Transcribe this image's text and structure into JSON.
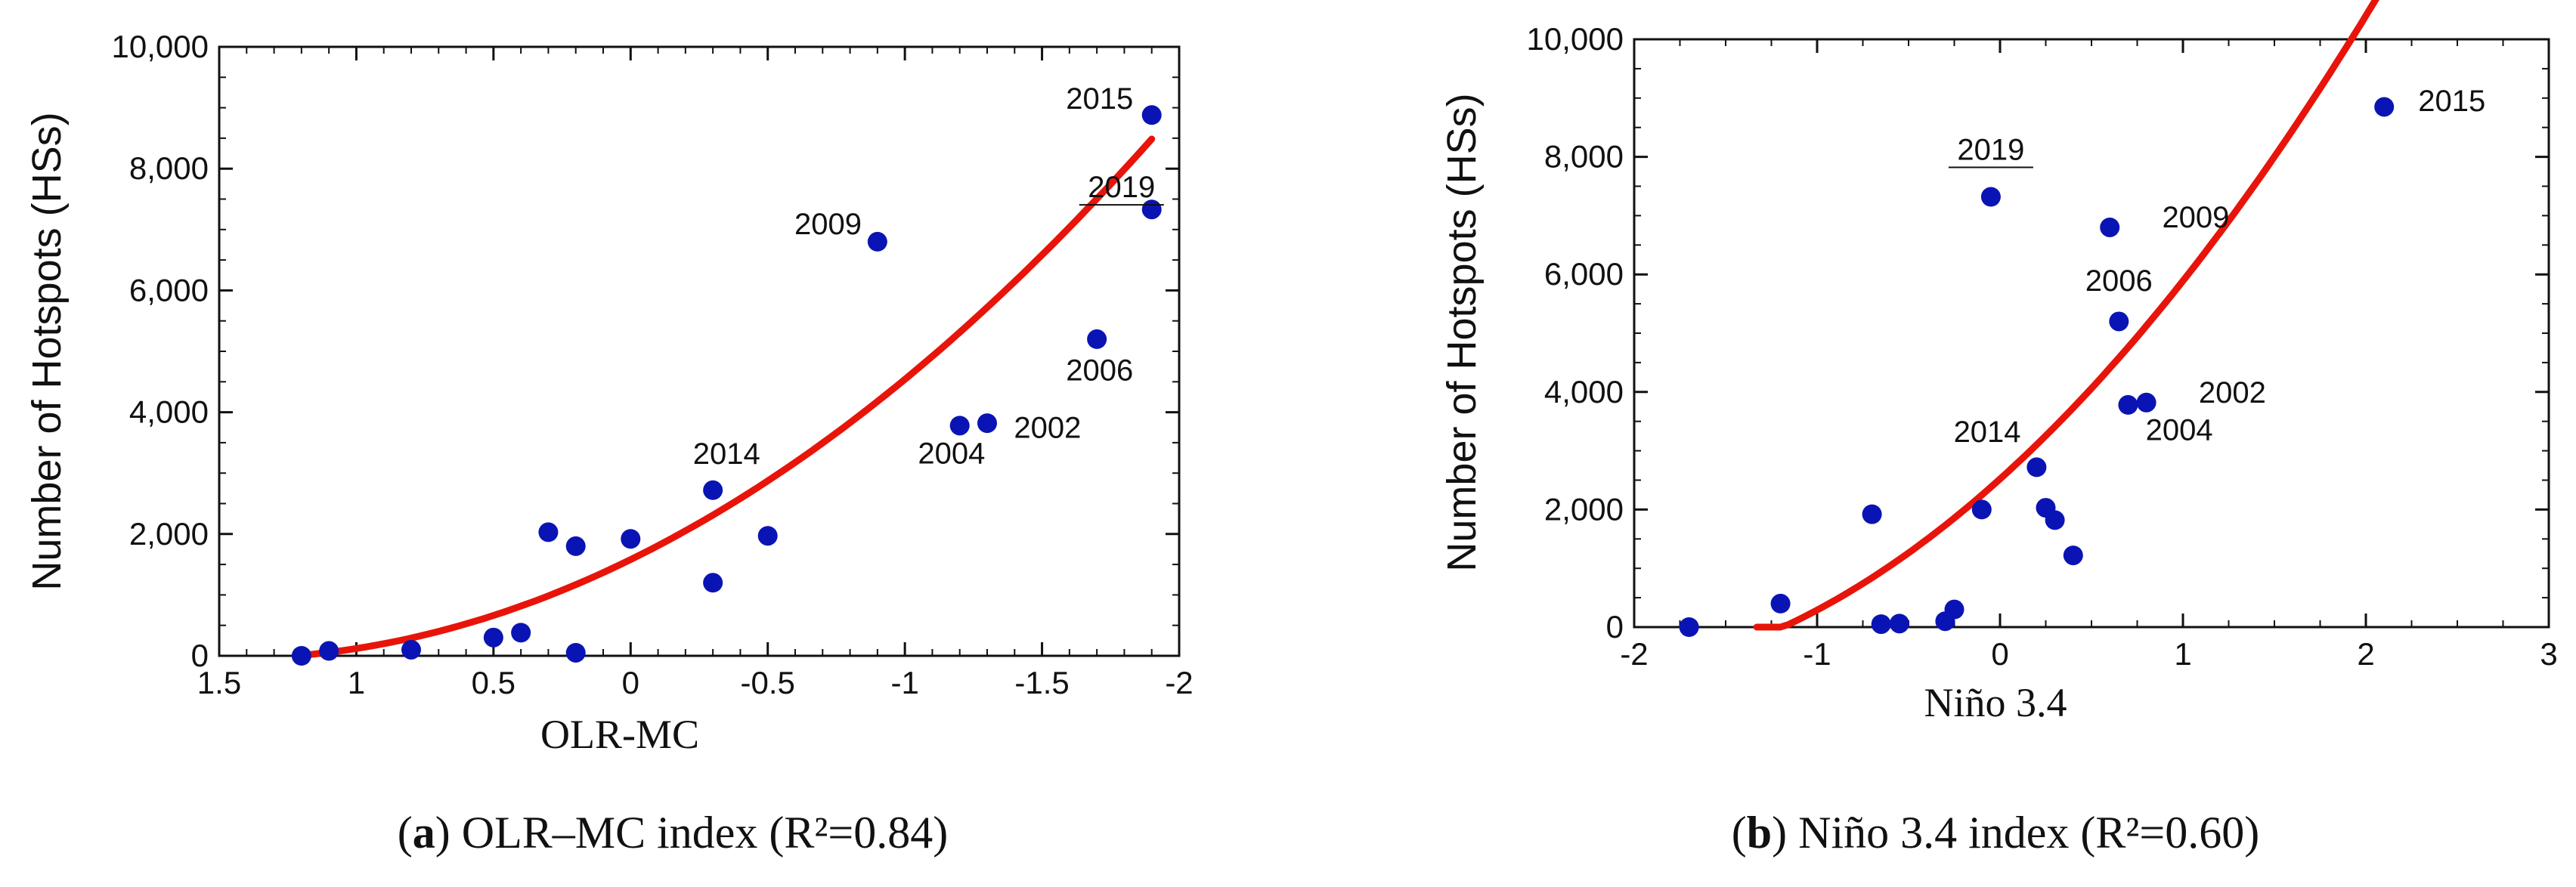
{
  "figure": {
    "caption_a": {
      "letter": "a",
      "text": "OLR–MC index (R²=0.84)"
    },
    "caption_b": {
      "letter": "b",
      "text": "Niño 3.4 index (R²=0.60)"
    }
  },
  "colors": {
    "points": "#0a14b4",
    "fit": "#e8140a",
    "axis": "#111111"
  },
  "chart_data": [
    {
      "id": "a",
      "type": "scatter",
      "title": "",
      "xlabel": "OLR-MC",
      "ylabel": "Number of Hotspots (HSs)",
      "xlim": [
        1.5,
        -2
      ],
      "ylim": [
        0,
        10000
      ],
      "x_ticks": [
        1.5,
        1,
        0.5,
        0,
        -0.5,
        -1,
        -1.5,
        -2
      ],
      "x_tick_labels": [
        "1.5",
        "1",
        "0.5",
        "0",
        "-0.5",
        "-1",
        "-1.5",
        "-2"
      ],
      "y_ticks": [
        0,
        2000,
        4000,
        6000,
        8000,
        10000
      ],
      "y_tick_labels": [
        "0",
        "2,000",
        "4,000",
        "6,000",
        "8,000",
        "10,000"
      ],
      "points": [
        {
          "x": 1.2,
          "y": 0
        },
        {
          "x": 1.1,
          "y": 80
        },
        {
          "x": 0.8,
          "y": 100
        },
        {
          "x": 0.5,
          "y": 300
        },
        {
          "x": 0.4,
          "y": 380
        },
        {
          "x": 0.3,
          "y": 2030
        },
        {
          "x": 0.2,
          "y": 1800
        },
        {
          "x": 0.2,
          "y": 50
        },
        {
          "x": 0.0,
          "y": 1920
        },
        {
          "x": -0.3,
          "y": 2720,
          "label": "2014"
        },
        {
          "x": -0.3,
          "y": 1200
        },
        {
          "x": -0.5,
          "y": 1970
        },
        {
          "x": -0.9,
          "y": 6800,
          "label": "2009"
        },
        {
          "x": -1.2,
          "y": 3780,
          "label": "2004"
        },
        {
          "x": -1.3,
          "y": 3820,
          "label": "2002"
        },
        {
          "x": -1.7,
          "y": 5200,
          "label": "2006"
        },
        {
          "x": -1.9,
          "y": 8880,
          "label": "2015"
        },
        {
          "x": -1.9,
          "y": 7330,
          "label": "2019"
        }
      ],
      "fit": {
        "type": "quadratic",
        "x_range": [
          1.2,
          -1.9
        ],
        "coeffs": [
          1580,
          -2210,
          750
        ]
      },
      "annotations": [
        {
          "text": "2014",
          "x": -0.35,
          "y": 3150
        },
        {
          "text": "2009",
          "x": -0.72,
          "y": 6920
        },
        {
          "text": "2004",
          "x": -1.17,
          "y": 3160
        },
        {
          "text": "2002",
          "x": -1.52,
          "y": 3580
        },
        {
          "text": "2006",
          "x": -1.71,
          "y": 4520
        },
        {
          "text": "2015",
          "x": -1.71,
          "y": 8980
        },
        {
          "text": "2019",
          "x": -1.79,
          "y": 7530,
          "underline": true
        }
      ]
    },
    {
      "id": "b",
      "type": "scatter",
      "title": "",
      "xlabel": "Niño 3.4",
      "ylabel": "Number of Hotspots (HSs)",
      "xlim": [
        -2,
        3
      ],
      "ylim": [
        0,
        10000
      ],
      "x_ticks": [
        -2,
        -1,
        0,
        1,
        2,
        3
      ],
      "x_tick_labels": [
        "-2",
        "-1",
        "0",
        "1",
        "2",
        "3"
      ],
      "y_ticks": [
        0,
        2000,
        4000,
        6000,
        8000,
        10000
      ],
      "y_tick_labels": [
        "0",
        "2,000",
        "4,000",
        "6,000",
        "8,000",
        "10,000"
      ],
      "points": [
        {
          "x": -1.7,
          "y": 0
        },
        {
          "x": -1.2,
          "y": 400
        },
        {
          "x": -0.7,
          "y": 1920
        },
        {
          "x": -0.65,
          "y": 50
        },
        {
          "x": -0.55,
          "y": 60
        },
        {
          "x": -0.3,
          "y": 100
        },
        {
          "x": -0.25,
          "y": 300
        },
        {
          "x": -0.1,
          "y": 2000
        },
        {
          "x": -0.05,
          "y": 7320,
          "label": "2019"
        },
        {
          "x": 0.2,
          "y": 2720,
          "label": "2014"
        },
        {
          "x": 0.25,
          "y": 2030
        },
        {
          "x": 0.3,
          "y": 1820
        },
        {
          "x": 0.4,
          "y": 1220
        },
        {
          "x": 0.6,
          "y": 6800,
          "label": "2009"
        },
        {
          "x": 0.65,
          "y": 5200,
          "label": "2006"
        },
        {
          "x": 0.7,
          "y": 3780,
          "label": "2004"
        },
        {
          "x": 0.8,
          "y": 3820,
          "label": "2002"
        },
        {
          "x": 2.1,
          "y": 8850,
          "label": "2015"
        }
      ],
      "fit": {
        "type": "quadratic",
        "x_range": [
          -1.33,
          2.1
        ],
        "coeffs": [
          2520,
          2800,
          570
        ]
      },
      "annotations": [
        {
          "text": "2019",
          "x": -0.05,
          "y": 7950,
          "underline": true
        },
        {
          "text": "2009",
          "x": 1.07,
          "y": 6800
        },
        {
          "text": "2006",
          "x": 0.65,
          "y": 5720
        },
        {
          "text": "2002",
          "x": 1.27,
          "y": 3820
        },
        {
          "text": "2004",
          "x": 0.98,
          "y": 3180
        },
        {
          "text": "2014",
          "x": -0.07,
          "y": 3150
        },
        {
          "text": "2015",
          "x": 2.47,
          "y": 8780
        }
      ]
    }
  ]
}
